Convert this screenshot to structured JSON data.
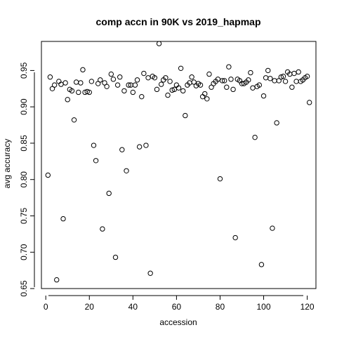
{
  "chart_data": {
    "type": "scatter",
    "title": "comp accn in 90K vs 2019_hapmap",
    "xlabel": "accession",
    "ylabel": "avg accuracy",
    "xlim": [
      -2,
      124
    ],
    "ylim": [
      0.65,
      0.99
    ],
    "xticks": [
      0,
      20,
      40,
      60,
      80,
      100,
      120
    ],
    "yticks": [
      0.65,
      0.7,
      0.75,
      0.8,
      0.85,
      0.9,
      0.95
    ],
    "xtick_labels": [
      "0",
      "20",
      "40",
      "60",
      "80",
      "100",
      "120"
    ],
    "ytick_labels": [
      "0.65",
      "0.70",
      "0.75",
      "0.80",
      "0.85",
      "0.90",
      "0.95"
    ],
    "marker": "open-circle",
    "grid": false,
    "x": [
      1,
      2,
      3,
      4,
      5,
      6,
      7,
      8,
      9,
      10,
      11,
      12,
      13,
      14,
      15,
      16,
      17,
      18,
      19,
      20,
      21,
      22,
      23,
      24,
      25,
      26,
      27,
      28,
      29,
      30,
      31,
      32,
      33,
      34,
      35,
      36,
      37,
      38,
      39,
      40,
      41,
      42,
      43,
      44,
      45,
      46,
      47,
      48,
      49,
      50,
      51,
      52,
      53,
      54,
      55,
      56,
      57,
      58,
      59,
      60,
      61,
      62,
      63,
      64,
      65,
      66,
      67,
      68,
      69,
      70,
      71,
      72,
      73,
      74,
      75,
      76,
      77,
      78,
      79,
      80,
      81,
      82,
      83,
      84,
      85,
      86,
      87,
      88,
      89,
      90,
      91,
      92,
      93,
      94,
      95,
      96,
      97,
      98,
      99,
      100,
      101,
      102,
      103,
      104,
      105,
      106,
      107,
      108,
      109,
      110,
      111,
      112,
      113,
      114,
      115,
      116,
      117,
      118,
      119,
      120,
      121
    ],
    "y": [
      0.806,
      0.941,
      0.925,
      0.93,
      0.662,
      0.935,
      0.931,
      0.746,
      0.933,
      0.91,
      0.924,
      0.922,
      0.882,
      0.934,
      0.92,
      0.933,
      0.951,
      0.92,
      0.921,
      0.92,
      0.935,
      0.847,
      0.826,
      0.932,
      0.937,
      0.732,
      0.933,
      0.928,
      0.781,
      0.945,
      0.938,
      0.693,
      0.93,
      0.941,
      0.841,
      0.922,
      0.812,
      0.93,
      0.93,
      0.92,
      0.93,
      0.937,
      0.845,
      0.914,
      0.946,
      0.847,
      0.94,
      0.671,
      0.942,
      0.94,
      0.924,
      0.987,
      0.931,
      0.937,
      0.94,
      0.916,
      0.935,
      0.923,
      0.924,
      0.93,
      0.926,
      0.953,
      0.922,
      0.888,
      0.93,
      0.933,
      0.941,
      0.934,
      0.929,
      0.932,
      0.93,
      0.914,
      0.918,
      0.911,
      0.945,
      0.927,
      0.932,
      0.935,
      0.938,
      0.801,
      0.936,
      0.936,
      0.927,
      0.955,
      0.938,
      0.924,
      0.72,
      0.938,
      0.936,
      0.932,
      0.932,
      0.934,
      0.937,
      0.947,
      0.926,
      0.858,
      0.928,
      0.93,
      0.683,
      0.915,
      0.94,
      0.95,
      0.939,
      0.733,
      0.936,
      0.878,
      0.936,
      0.941,
      0.942,
      0.935,
      0.948,
      0.945,
      0.927,
      0.946,
      0.935,
      0.948,
      0.935,
      0.937,
      0.94,
      0.942,
      0.906
    ]
  }
}
